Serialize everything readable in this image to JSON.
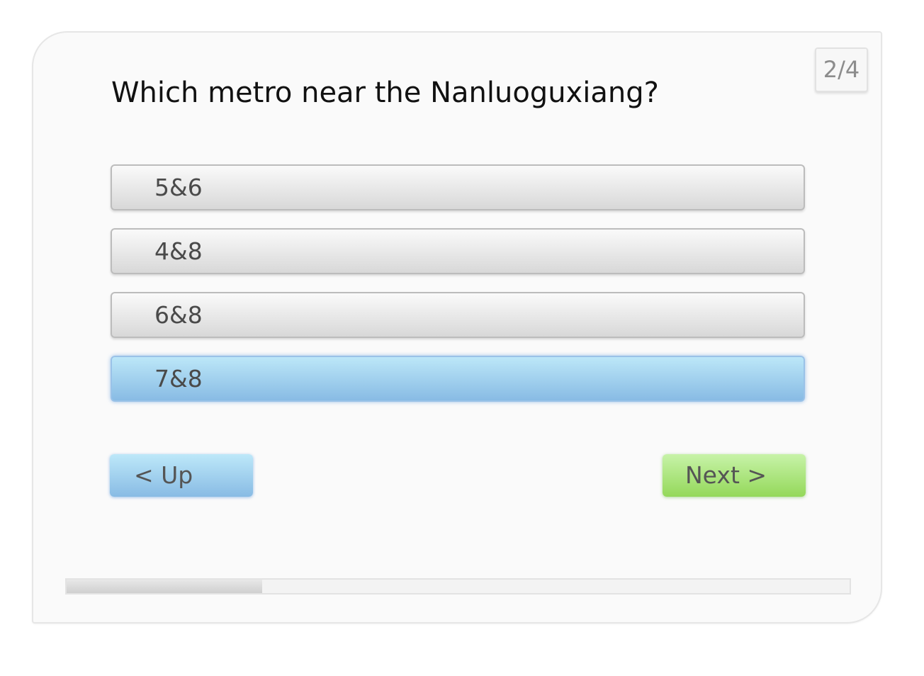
{
  "counter": "2/4",
  "question": "Which metro near the Nanluoguxiang?",
  "options": [
    {
      "label": "5&6",
      "selected": false
    },
    {
      "label": "4&8",
      "selected": false
    },
    {
      "label": "6&8",
      "selected": false
    },
    {
      "label": "7&8",
      "selected": true
    }
  ],
  "nav": {
    "up_label": "< Up",
    "next_label": "Next >"
  },
  "progress": {
    "fraction": 0.25
  },
  "colors": {
    "selected_option": "#88bbe4",
    "up_button": "#88bbe4",
    "next_button": "#94d85a"
  }
}
